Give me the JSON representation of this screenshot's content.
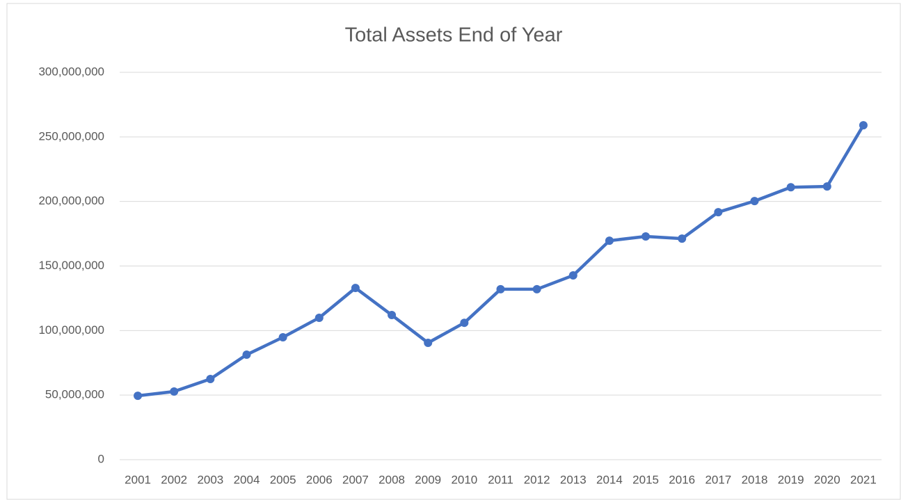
{
  "chart_data": {
    "type": "line",
    "title": "Total Assets End of Year",
    "categories": [
      "2001",
      "2002",
      "2003",
      "2004",
      "2005",
      "2006",
      "2007",
      "2008",
      "2009",
      "2010",
      "2011",
      "2012",
      "2013",
      "2014",
      "2015",
      "2016",
      "2017",
      "2018",
      "2019",
      "2020",
      "2021"
    ],
    "series": [
      {
        "name": "Total Assets",
        "color": "#4472c4",
        "values": [
          49500000,
          52800000,
          62500000,
          81300000,
          94800000,
          109900000,
          133000000,
          112000000,
          90500000,
          106000000,
          132000000,
          132000000,
          142700000,
          169600000,
          172900000,
          171200000,
          191700000,
          200300000,
          211000000,
          211600000,
          259000000
        ]
      }
    ],
    "ylim": [
      0,
      300000000
    ],
    "yticks": [
      0,
      {
        "value": 50000000,
        "label": "50,000,000"
      },
      {
        "value": 100000000,
        "label": "100,000,000"
      },
      {
        "value": 150000000,
        "label": "150,000,000"
      },
      {
        "value": 200000000,
        "label": "200,000,000"
      },
      {
        "value": 250000000,
        "label": "250,000,000"
      },
      {
        "value": 300000000,
        "label": "300,000,000"
      }
    ],
    "grid": true
  }
}
